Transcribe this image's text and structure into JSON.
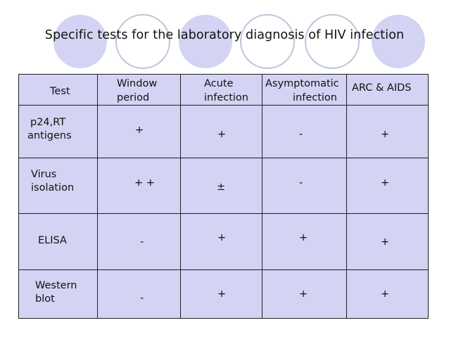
{
  "slide": {
    "title": "Specific tests for the laboratory diagnosis of HIV infection"
  },
  "table": {
    "header": {
      "test": "Test",
      "window_1": "Window",
      "window_2": "period",
      "acute_1": "Acute",
      "acute_2": "infection",
      "asym_1": "Asymptomatic",
      "asym_2": "infection",
      "arc": "ARC & AIDS"
    },
    "rows": [
      {
        "test_1": "p24,RT",
        "test_2": "antigens",
        "window": "+",
        "acute": "+",
        "asym": "-",
        "arc": "+"
      },
      {
        "test_1": "Virus",
        "test_2": "isolation",
        "window": "+ +",
        "acute": "±",
        "asym": "-",
        "arc": "+"
      },
      {
        "test_1": "ELISA",
        "test_2": "",
        "window": "-",
        "acute": "+",
        "asym": "+",
        "arc": "+"
      },
      {
        "test_1": "Western",
        "test_2": "blot",
        "window": "-",
        "acute": "+",
        "asym": "+",
        "arc": "+"
      }
    ]
  },
  "colors": {
    "table_fill": "#d3d3f3",
    "circle_fill": "#d3d3f3",
    "circle_stroke": "#bdbdd9"
  }
}
